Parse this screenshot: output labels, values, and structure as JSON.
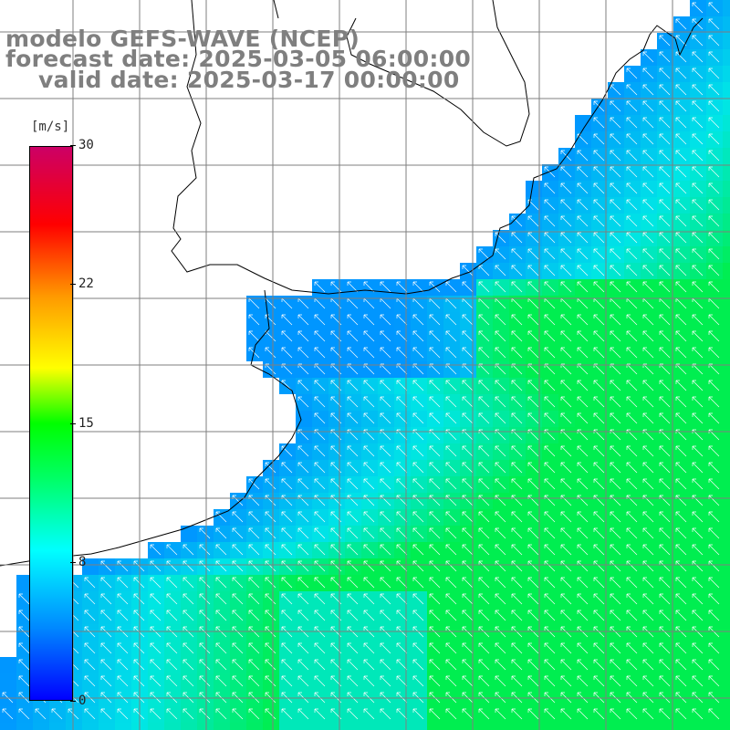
{
  "header": {
    "model": "modelo GEFS-WAVE (NCEP)",
    "forecast": "forecast date: 2025-03-05 06:00:00",
    "valid": "valid date: 2025-03-17 00:00:00"
  },
  "colorbar": {
    "unit": "[m/s]",
    "ticks": [
      {
        "label": "30",
        "value": 30
      },
      {
        "label": "22",
        "value": 22
      },
      {
        "label": "15",
        "value": 15
      },
      {
        "label": "8",
        "value": 8
      },
      {
        "label": "0",
        "value": 0
      }
    ],
    "colors": [
      "#0000ff",
      "#0088ff",
      "#00ffff",
      "#00ff66",
      "#00ff00",
      "#ffff00",
      "#ff9900",
      "#ff0000",
      "#cc0066"
    ]
  },
  "map": {
    "land_color": "#ffffff",
    "grid_color": "#7f7f7f",
    "coast_color": "#000000",
    "arrow_color": "#ffffff",
    "wind_direction": "from south-east"
  }
}
